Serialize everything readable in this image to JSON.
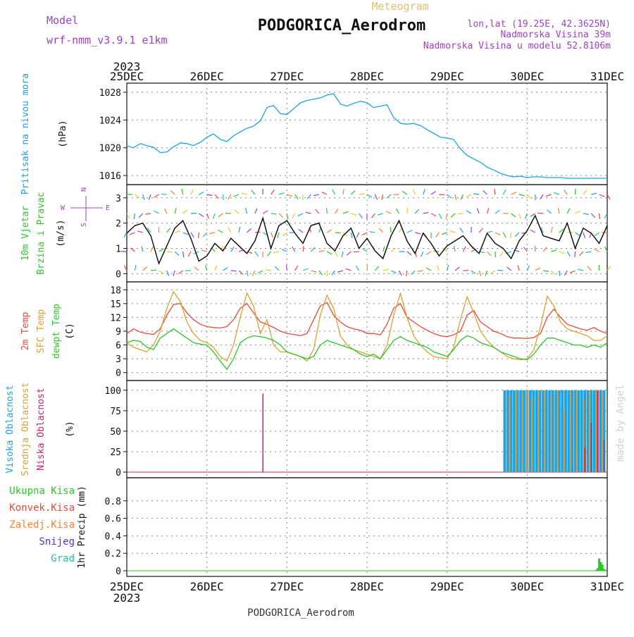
{
  "header": {
    "model_label": "Model",
    "model_name": "wrf-nmm_v3.9.1 e1km",
    "product": "Meteogram",
    "station": "PODGORICA_Aerodrom",
    "lonlat": "lon,lat (19.25E, 42.3625N)",
    "elevation": "Nadmorska Visina 39m",
    "model_elevation": "Nadmorska Visina u modelu 52.8106m",
    "footer_station": "PODGORICA_Aerodrom",
    "credit": "made by Angel"
  },
  "time_axis": {
    "year": "2023",
    "labels": [
      "25DEC",
      "26DEC",
      "27DEC",
      "28DEC",
      "29DEC",
      "30DEC",
      "31DEC"
    ]
  },
  "compass": {
    "n": "N",
    "s": "S",
    "e": "E",
    "w": "W"
  },
  "colors": {
    "pressure": "#1aa3e8",
    "temp2m": "#e84a3a",
    "sfc_temp": "#e0a030",
    "dewpoint": "#28c828",
    "cloud_high": "#1aa3e8",
    "cloud_mid": "#e0a030",
    "cloud_low": "#c8207a",
    "precip_total": "#28c828",
    "precip_conv": "#e84a3a",
    "precip_frozen": "#ff7f2a",
    "precip_snow": "#3c3cdc",
    "precip_hail": "#20c0b0",
    "model_label": "#a040c8",
    "product_label": "#e0c070",
    "credit": "#c8d8c8"
  },
  "chart_data": [
    {
      "type": "line",
      "panel": "pressure",
      "ylabel_lines": [
        "Pritisak na nivou mora",
        "(hPa)"
      ],
      "ylim": [
        1015.5,
        1028.5
      ],
      "yticks": [
        "1016",
        "1020",
        "1024",
        "1028"
      ],
      "x_days": [
        0,
        0.08,
        0.17,
        0.25,
        0.33,
        0.42,
        0.5,
        0.58,
        0.67,
        0.75,
        0.83,
        0.92,
        1,
        1.08,
        1.17,
        1.25,
        1.33,
        1.42,
        1.5,
        1.58,
        1.67,
        1.75,
        1.83,
        1.92,
        2,
        2.08,
        2.17,
        2.25,
        2.33,
        2.42,
        2.5,
        2.58,
        2.67,
        2.75,
        2.83,
        2.92,
        3,
        3.08,
        3.17,
        3.25,
        3.33,
        3.42,
        3.5,
        3.58,
        3.67,
        3.75,
        3.83,
        3.92,
        4,
        4.08,
        4.17,
        4.25,
        4.33,
        4.42,
        4.5,
        4.58,
        4.67,
        4.75,
        4.83,
        4.92,
        5,
        5.08,
        5.17,
        5.25,
        5.33,
        5.42,
        5.5,
        5.58,
        5.67,
        5.75,
        5.83,
        5.92,
        6
      ],
      "series": [
        {
          "values": [
            1020.3,
            1020.0,
            1020.6,
            1020.3,
            1020.1,
            1019.3,
            1019.4,
            1020.1,
            1020.7,
            1020.6,
            1020.3,
            1020.8,
            1021.5,
            1022.0,
            1021.2,
            1020.9,
            1021.7,
            1022.3,
            1022.8,
            1023.1,
            1023.9,
            1025.8,
            1026.1,
            1024.9,
            1024.8,
            1025.6,
            1026.5,
            1026.8,
            1027.0,
            1027.2,
            1027.6,
            1027.8,
            1026.3,
            1026.0,
            1026.4,
            1026.7,
            1026.5,
            1025.8,
            1026.0,
            1026.2,
            1024.4,
            1023.5,
            1023.4,
            1023.5,
            1023.2,
            1022.6,
            1022.1,
            1021.5,
            1021.4,
            1021.2,
            1019.8,
            1018.9,
            1018.4,
            1017.9,
            1017.2,
            1016.8,
            1016.3,
            1016.0,
            1015.8,
            1015.9,
            1015.7,
            1015.8,
            1015.8,
            1015.7,
            1015.7,
            1015.7,
            1015.6,
            1015.6,
            1015.6,
            1015.6,
            1015.6,
            1015.6,
            1015.6
          ]
        }
      ]
    },
    {
      "type": "line",
      "panel": "wind",
      "ylabel_lines": [
        "10m Vjetar",
        "Brzina i Pravac",
        "(m/s)"
      ],
      "ylim": [
        -0.1,
        3.3
      ],
      "yticks": [
        "0",
        "1",
        "2",
        "3"
      ],
      "x_days": [
        0,
        0.1,
        0.2,
        0.3,
        0.4,
        0.5,
        0.6,
        0.7,
        0.8,
        0.9,
        1,
        1.1,
        1.2,
        1.3,
        1.4,
        1.5,
        1.6,
        1.7,
        1.8,
        1.9,
        2,
        2.1,
        2.2,
        2.3,
        2.4,
        2.5,
        2.6,
        2.7,
        2.8,
        2.9,
        3,
        3.1,
        3.2,
        3.3,
        3.4,
        3.5,
        3.6,
        3.7,
        3.8,
        3.9,
        4,
        4.1,
        4.2,
        4.3,
        4.4,
        4.5,
        4.6,
        4.7,
        4.8,
        4.9,
        5,
        5.1,
        5.2,
        5.3,
        5.4,
        5.5,
        5.6,
        5.7,
        5.8,
        5.9,
        6
      ],
      "series": [
        {
          "values": [
            1.6,
            1.9,
            2.0,
            1.5,
            0.4,
            1.1,
            1.8,
            2.1,
            1.4,
            0.5,
            0.7,
            1.2,
            0.9,
            1.4,
            1.1,
            0.8,
            1.3,
            2.2,
            1.0,
            1.9,
            2.1,
            1.6,
            1.2,
            1.9,
            2.0,
            1.2,
            0.9,
            1.5,
            1.8,
            1.0,
            1.4,
            0.9,
            0.6,
            1.5,
            2.1,
            1.3,
            0.8,
            1.6,
            1.2,
            0.7,
            1.1,
            1.3,
            1.5,
            1.1,
            0.8,
            1.6,
            1.2,
            1.0,
            0.6,
            1.3,
            1.7,
            2.3,
            1.5,
            1.4,
            1.3,
            2.0,
            1.0,
            1.8,
            1.6,
            1.2,
            1.9
          ]
        }
      ]
    },
    {
      "type": "line",
      "panel": "temperature",
      "ylabel_lines": [
        "2m Temp",
        "SFC Temp",
        "dewpt Temp",
        "(C)"
      ],
      "ylim": [
        -0.5,
        18.5
      ],
      "yticks": [
        "0",
        "3",
        "6",
        "9",
        "12",
        "15",
        "18"
      ],
      "x_days": [
        0,
        0.083,
        0.167,
        0.25,
        0.333,
        0.417,
        0.5,
        0.583,
        0.667,
        0.75,
        0.833,
        0.917,
        1,
        1.083,
        1.167,
        1.25,
        1.333,
        1.417,
        1.5,
        1.583,
        1.667,
        1.75,
        1.833,
        1.917,
        2,
        2.083,
        2.167,
        2.25,
        2.333,
        2.417,
        2.5,
        2.583,
        2.667,
        2.75,
        2.833,
        2.917,
        3,
        3.083,
        3.167,
        3.25,
        3.333,
        3.417,
        3.5,
        3.583,
        3.667,
        3.75,
        3.833,
        3.917,
        4,
        4.083,
        4.167,
        4.25,
        4.333,
        4.417,
        4.5,
        4.583,
        4.667,
        4.75,
        4.833,
        4.917,
        5,
        5.083,
        5.167,
        5.25,
        5.333,
        5.417,
        5.5,
        5.583,
        5.667,
        5.75,
        5.833,
        5.917,
        6
      ],
      "series": [
        {
          "name": "2m Temp",
          "values": [
            8.5,
            9.5,
            8.8,
            8.5,
            8.3,
            9.5,
            12.5,
            14.8,
            15.0,
            13.0,
            11.5,
            10.5,
            10.0,
            9.8,
            9.7,
            10.0,
            11.5,
            14.0,
            15.0,
            13.0,
            11.0,
            10.5,
            9.8,
            9.0,
            8.5,
            8.3,
            8.0,
            8.5,
            11.5,
            14.5,
            15.2,
            12.5,
            11.0,
            10.0,
            9.5,
            9.2,
            8.5,
            8.5,
            8.2,
            10.5,
            14.0,
            15.0,
            12.0,
            11.0,
            10.0,
            9.2,
            8.5,
            8.0,
            7.8,
            8.2,
            9.0,
            12.5,
            13.5,
            11.0,
            10.0,
            9.0,
            8.5,
            7.8,
            7.5,
            7.5,
            7.4,
            7.6,
            8.5,
            12.0,
            13.8,
            12.0,
            10.5,
            10.0,
            9.5,
            9.2,
            9.8,
            9.0,
            8.5
          ]
        },
        {
          "name": "SFC Temp",
          "values": [
            6.5,
            5.5,
            5.0,
            4.5,
            6.0,
            9.0,
            14.0,
            17.6,
            15.5,
            11.0,
            8.5,
            7.0,
            6.5,
            5.5,
            3.5,
            2.5,
            6.0,
            12.0,
            17.3,
            14.5,
            8.5,
            11.5,
            6.0,
            4.5,
            4.5,
            4.0,
            3.5,
            2.5,
            5.0,
            12.5,
            16.8,
            14.0,
            8.0,
            6.0,
            5.0,
            4.5,
            4.0,
            3.5,
            3.0,
            6.0,
            12.5,
            17.2,
            12.0,
            8.0,
            6.0,
            4.5,
            3.5,
            3.2,
            3.0,
            5.5,
            11.5,
            16.5,
            13.0,
            9.0,
            7.0,
            5.5,
            4.5,
            3.5,
            3.0,
            2.8,
            3.0,
            5.0,
            10.0,
            16.6,
            14.5,
            11.0,
            9.5,
            9.0,
            8.5,
            8.0,
            7.0,
            7.0,
            8.0
          ]
        },
        {
          "name": "dewpt Temp",
          "values": [
            6.5,
            7.0,
            6.8,
            5.5,
            5.0,
            7.5,
            8.5,
            9.5,
            8.5,
            7.5,
            6.5,
            6.2,
            6.0,
            4.5,
            2.5,
            0.7,
            3.0,
            6.5,
            7.5,
            8.0,
            7.8,
            7.5,
            7.0,
            6.0,
            4.5,
            4.0,
            3.5,
            3.0,
            3.5,
            6.0,
            7.0,
            6.5,
            6.0,
            5.5,
            5.0,
            4.0,
            3.5,
            4.0,
            3.0,
            5.0,
            7.0,
            7.8,
            7.0,
            6.5,
            6.0,
            5.5,
            4.5,
            4.0,
            3.5,
            5.0,
            7.0,
            8.0,
            7.5,
            6.5,
            6.0,
            5.5,
            4.5,
            4.0,
            3.5,
            3.0,
            2.8,
            4.0,
            6.0,
            7.5,
            7.5,
            7.0,
            6.5,
            6.0,
            6.0,
            5.5,
            6.0,
            5.5,
            6.5
          ]
        }
      ]
    },
    {
      "type": "bar",
      "panel": "cloud",
      "ylabel_lines": [
        "Visoka Oblacnost",
        "Srednja Oblacnost",
        "Niska Oblacnost",
        "(%)"
      ],
      "ylim": [
        0,
        105
      ],
      "yticks": [
        "0",
        "25",
        "50",
        "75",
        "100"
      ],
      "series": [
        {
          "name": "Visoka Oblacnost",
          "x_days": [
            4.72,
            4.76,
            4.8,
            4.84,
            4.88,
            4.92,
            4.96,
            5.0,
            5.04,
            5.08,
            5.12,
            5.16,
            5.2,
            5.24,
            5.28,
            5.32,
            5.36,
            5.4,
            5.44,
            5.48,
            5.52,
            5.56,
            5.6,
            5.64,
            5.68,
            5.72,
            5.76,
            5.8,
            5.84,
            5.88,
            5.92,
            5.96
          ],
          "values": [
            100,
            100,
            100,
            100,
            100,
            100,
            100,
            100,
            100,
            100,
            100,
            100,
            100,
            100,
            100,
            100,
            100,
            100,
            100,
            100,
            100,
            100,
            100,
            100,
            100,
            100,
            100,
            100,
            100,
            100,
            100,
            100
          ]
        },
        {
          "name": "Srednja Oblacnost",
          "x_days": [
            4.78,
            4.86,
            4.94,
            5.0,
            5.06,
            5.14,
            5.22,
            5.3,
            5.38,
            5.46,
            5.54,
            5.62,
            5.7,
            5.78,
            5.86,
            5.94
          ],
          "values": [
            95,
            100,
            98,
            100,
            90,
            100,
            100,
            95,
            100,
            75,
            100,
            100,
            90,
            100,
            100,
            98
          ]
        },
        {
          "name": "Niska Oblacnost",
          "x_days": [
            1.7,
            5.72,
            5.8,
            5.88,
            5.96
          ],
          "values": [
            96,
            30,
            60,
            100,
            40
          ]
        }
      ]
    },
    {
      "type": "bar",
      "panel": "precip",
      "ylabel_lines": [
        "1hr Precip (mm)"
      ],
      "legend": [
        "Ukupna Kisa",
        "Konvek.Kisa",
        "Zaledj.Kisa",
        "Snijeg",
        "Grad"
      ],
      "ylim": [
        0,
        1.0
      ],
      "yticks": [
        "0",
        "0.2",
        "0.4",
        "0.6",
        "0.8"
      ],
      "series": [
        {
          "name": "Ukupna Kisa",
          "x_days": [
            5.86,
            5.88,
            5.9,
            5.92,
            5.94,
            5.96,
            5.98
          ],
          "values": [
            0.01,
            0.03,
            0.14,
            0.1,
            0.07,
            0.02,
            0.01
          ]
        }
      ]
    }
  ]
}
